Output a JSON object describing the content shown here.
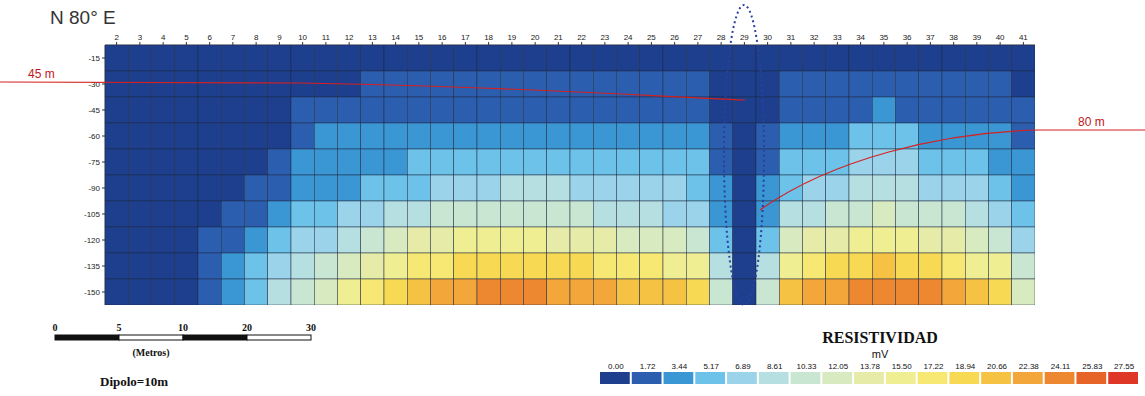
{
  "chart_data": {
    "type": "heatmap",
    "title": "N 80° E",
    "x": [
      2,
      3,
      4,
      5,
      6,
      7,
      8,
      9,
      10,
      11,
      12,
      13,
      14,
      15,
      16,
      17,
      18,
      19,
      20,
      21,
      22,
      23,
      24,
      25,
      26,
      27,
      28,
      29,
      30,
      31,
      32,
      33,
      34,
      35,
      36,
      37,
      38,
      39,
      40,
      41
    ],
    "xlim": [
      1.5,
      41.5
    ],
    "xticks": [
      2,
      3,
      4,
      5,
      6,
      7,
      8,
      9,
      10,
      11,
      12,
      13,
      14,
      15,
      16,
      17,
      18,
      19,
      20,
      21,
      22,
      23,
      24,
      25,
      26,
      27,
      28,
      29,
      30,
      31,
      32,
      33,
      34,
      35,
      36,
      37,
      38,
      39,
      40,
      41
    ],
    "y": [
      -15,
      -30,
      -45,
      -60,
      -75,
      -90,
      -105,
      -120,
      -135,
      -150
    ],
    "ylim": [
      -157.5,
      -7.5
    ],
    "yticks": [
      -15,
      -30,
      -45,
      -60,
      -75,
      -90,
      -105,
      -120,
      -135,
      -150
    ],
    "grid": true,
    "cells": [
      [
        0.5,
        0.5,
        0.5,
        0.5,
        0.5,
        0.5,
        0.5,
        0.5,
        0.5,
        0.5,
        0.5,
        0.5,
        0.5,
        0.5,
        0.5,
        0.5,
        0.5,
        0.5,
        0.5,
        0.5,
        0.5,
        0.5,
        0.5,
        0.5,
        0.5,
        0.5,
        0.5,
        0.5,
        0.5,
        0.5,
        0.5,
        0.5,
        0.5,
        0.5,
        0.5,
        0.5,
        0.5,
        0.5,
        0.5,
        0.5
      ],
      [
        0.8,
        0.8,
        0.8,
        0.8,
        0.8,
        0.8,
        0.8,
        0.8,
        0.8,
        0.8,
        0.8,
        1.8,
        1.9,
        2.0,
        2.0,
        2.1,
        2.1,
        2.0,
        2.0,
        1.9,
        1.9,
        1.9,
        1.8,
        1.8,
        1.8,
        1.8,
        0.8,
        0.8,
        0.8,
        1.8,
        1.9,
        2.0,
        2.0,
        2.0,
        1.9,
        1.9,
        1.8,
        1.8,
        1.8,
        0.8
      ],
      [
        0.8,
        0.8,
        0.8,
        0.8,
        0.8,
        0.8,
        0.8,
        0.8,
        1.8,
        1.9,
        2.4,
        2.6,
        2.8,
        3.0,
        3.2,
        3.3,
        3.3,
        3.2,
        3.1,
        3.0,
        2.9,
        2.8,
        2.7,
        2.6,
        2.5,
        2.4,
        1.5,
        0.8,
        1.5,
        2.6,
        2.9,
        3.2,
        3.4,
        3.5,
        3.4,
        3.2,
        3.0,
        2.7,
        2.0,
        1.8
      ],
      [
        0.9,
        0.9,
        0.9,
        0.9,
        0.9,
        0.9,
        0.9,
        0.9,
        2.0,
        3.5,
        3.7,
        3.9,
        4.2,
        4.5,
        4.8,
        5.0,
        5.1,
        5.0,
        4.8,
        4.6,
        4.4,
        4.2,
        4.0,
        3.9,
        3.8,
        3.6,
        2.2,
        0.9,
        2.2,
        3.8,
        4.3,
        4.8,
        5.2,
        5.3,
        5.2,
        4.9,
        4.5,
        4.0,
        3.5,
        2.4
      ],
      [
        1.0,
        1.0,
        1.0,
        1.0,
        1.0,
        1.0,
        1.0,
        1.9,
        3.5,
        3.7,
        4.0,
        4.4,
        4.9,
        5.3,
        5.6,
        5.9,
        6.2,
        6.5,
        6.6,
        6.4,
        6.2,
        6.0,
        5.8,
        5.6,
        5.4,
        5.2,
        3.0,
        0.9,
        3.0,
        5.4,
        6.0,
        6.6,
        7.0,
        7.1,
        6.9,
        6.5,
        6.0,
        5.4,
        4.8,
        3.6
      ],
      [
        1.0,
        1.0,
        1.0,
        1.0,
        1.0,
        1.0,
        1.9,
        2.8,
        4.0,
        4.5,
        5.0,
        5.6,
        6.2,
        6.8,
        7.4,
        8.0,
        8.5,
        8.8,
        8.9,
        8.7,
        8.4,
        8.0,
        7.6,
        7.2,
        6.9,
        6.6,
        3.8,
        1.0,
        3.8,
        6.8,
        7.6,
        8.4,
        9.0,
        9.2,
        9.0,
        8.5,
        7.8,
        7.0,
        6.2,
        4.5
      ],
      [
        1.0,
        1.0,
        1.0,
        1.0,
        1.0,
        2.0,
        3.0,
        4.8,
        5.5,
        6.4,
        7.3,
        8.2,
        9.1,
        10.0,
        10.8,
        11.4,
        11.8,
        11.9,
        11.6,
        11.0,
        10.4,
        9.8,
        9.3,
        8.9,
        8.6,
        8.3,
        4.8,
        1.0,
        4.8,
        9.0,
        10.0,
        11.0,
        11.8,
        12.2,
        12.0,
        11.4,
        10.5,
        9.5,
        8.5,
        6.0
      ],
      [
        1.0,
        1.0,
        1.0,
        1.0,
        2.2,
        3.0,
        4.2,
        6.0,
        7.2,
        8.6,
        10.0,
        11.4,
        12.8,
        14.0,
        15.0,
        15.6,
        16.0,
        16.1,
        15.8,
        15.2,
        14.5,
        13.8,
        13.2,
        12.6,
        12.2,
        11.8,
        6.5,
        1.2,
        6.5,
        12.5,
        13.8,
        15.0,
        15.8,
        16.2,
        16.0,
        15.3,
        14.2,
        13.0,
        11.6,
        8.0
      ],
      [
        1.0,
        1.0,
        1.0,
        1.0,
        2.8,
        4.0,
        5.5,
        8.0,
        9.5,
        11.0,
        12.8,
        14.5,
        16.0,
        17.4,
        18.6,
        19.6,
        20.2,
        20.5,
        20.4,
        20.0,
        19.4,
        18.7,
        18.0,
        17.4,
        16.9,
        16.5,
        9.0,
        1.4,
        9.0,
        17.0,
        18.4,
        19.6,
        20.4,
        20.8,
        20.6,
        19.8,
        18.6,
        17.2,
        15.6,
        11.0
      ],
      [
        1.0,
        1.0,
        1.0,
        1.0,
        3.2,
        4.8,
        6.5,
        9.5,
        11.5,
        13.5,
        15.5,
        17.5,
        19.5,
        21.2,
        22.6,
        23.6,
        24.3,
        24.6,
        24.5,
        24.1,
        23.4,
        22.7,
        22.0,
        21.4,
        20.9,
        20.5,
        11.0,
        1.6,
        11.0,
        21.5,
        22.8,
        24.0,
        24.8,
        25.2,
        25.0,
        24.2,
        23.0,
        21.5,
        19.8,
        13.0
      ]
    ],
    "colorbar": {
      "title": "RESISTIVIDAD",
      "unit": "mV",
      "ticks": [
        {
          "value": 0,
          "label": "0.00"
        },
        1.72,
        3.44,
        5.17,
        6.89,
        8.61,
        10.33,
        12.05,
        13.78,
        {
          "value": 15.5,
          "label": "15.50"
        },
        17.22,
        18.94,
        20.66,
        22.38,
        24.11,
        25.83,
        27.55
      ],
      "colors": [
        "#1d3f8e",
        "#2c5eaf",
        "#3b97d4",
        "#6cc2e8",
        "#9bd4ea",
        "#b6dfe2",
        "#c8e6d2",
        "#d8ebc0",
        "#e6eca8",
        "#f0ee92",
        "#f6e872",
        "#f8d954",
        "#f6c244",
        "#f3a63a",
        "#ee8830",
        "#e76428",
        "#de3726"
      ]
    },
    "annotations": [
      "45 m",
      "80 m",
      "Dipolo=10m"
    ],
    "scale_bar": {
      "label": "(Metros)",
      "ticks": [
        0,
        5,
        10,
        20,
        30
      ]
    }
  }
}
